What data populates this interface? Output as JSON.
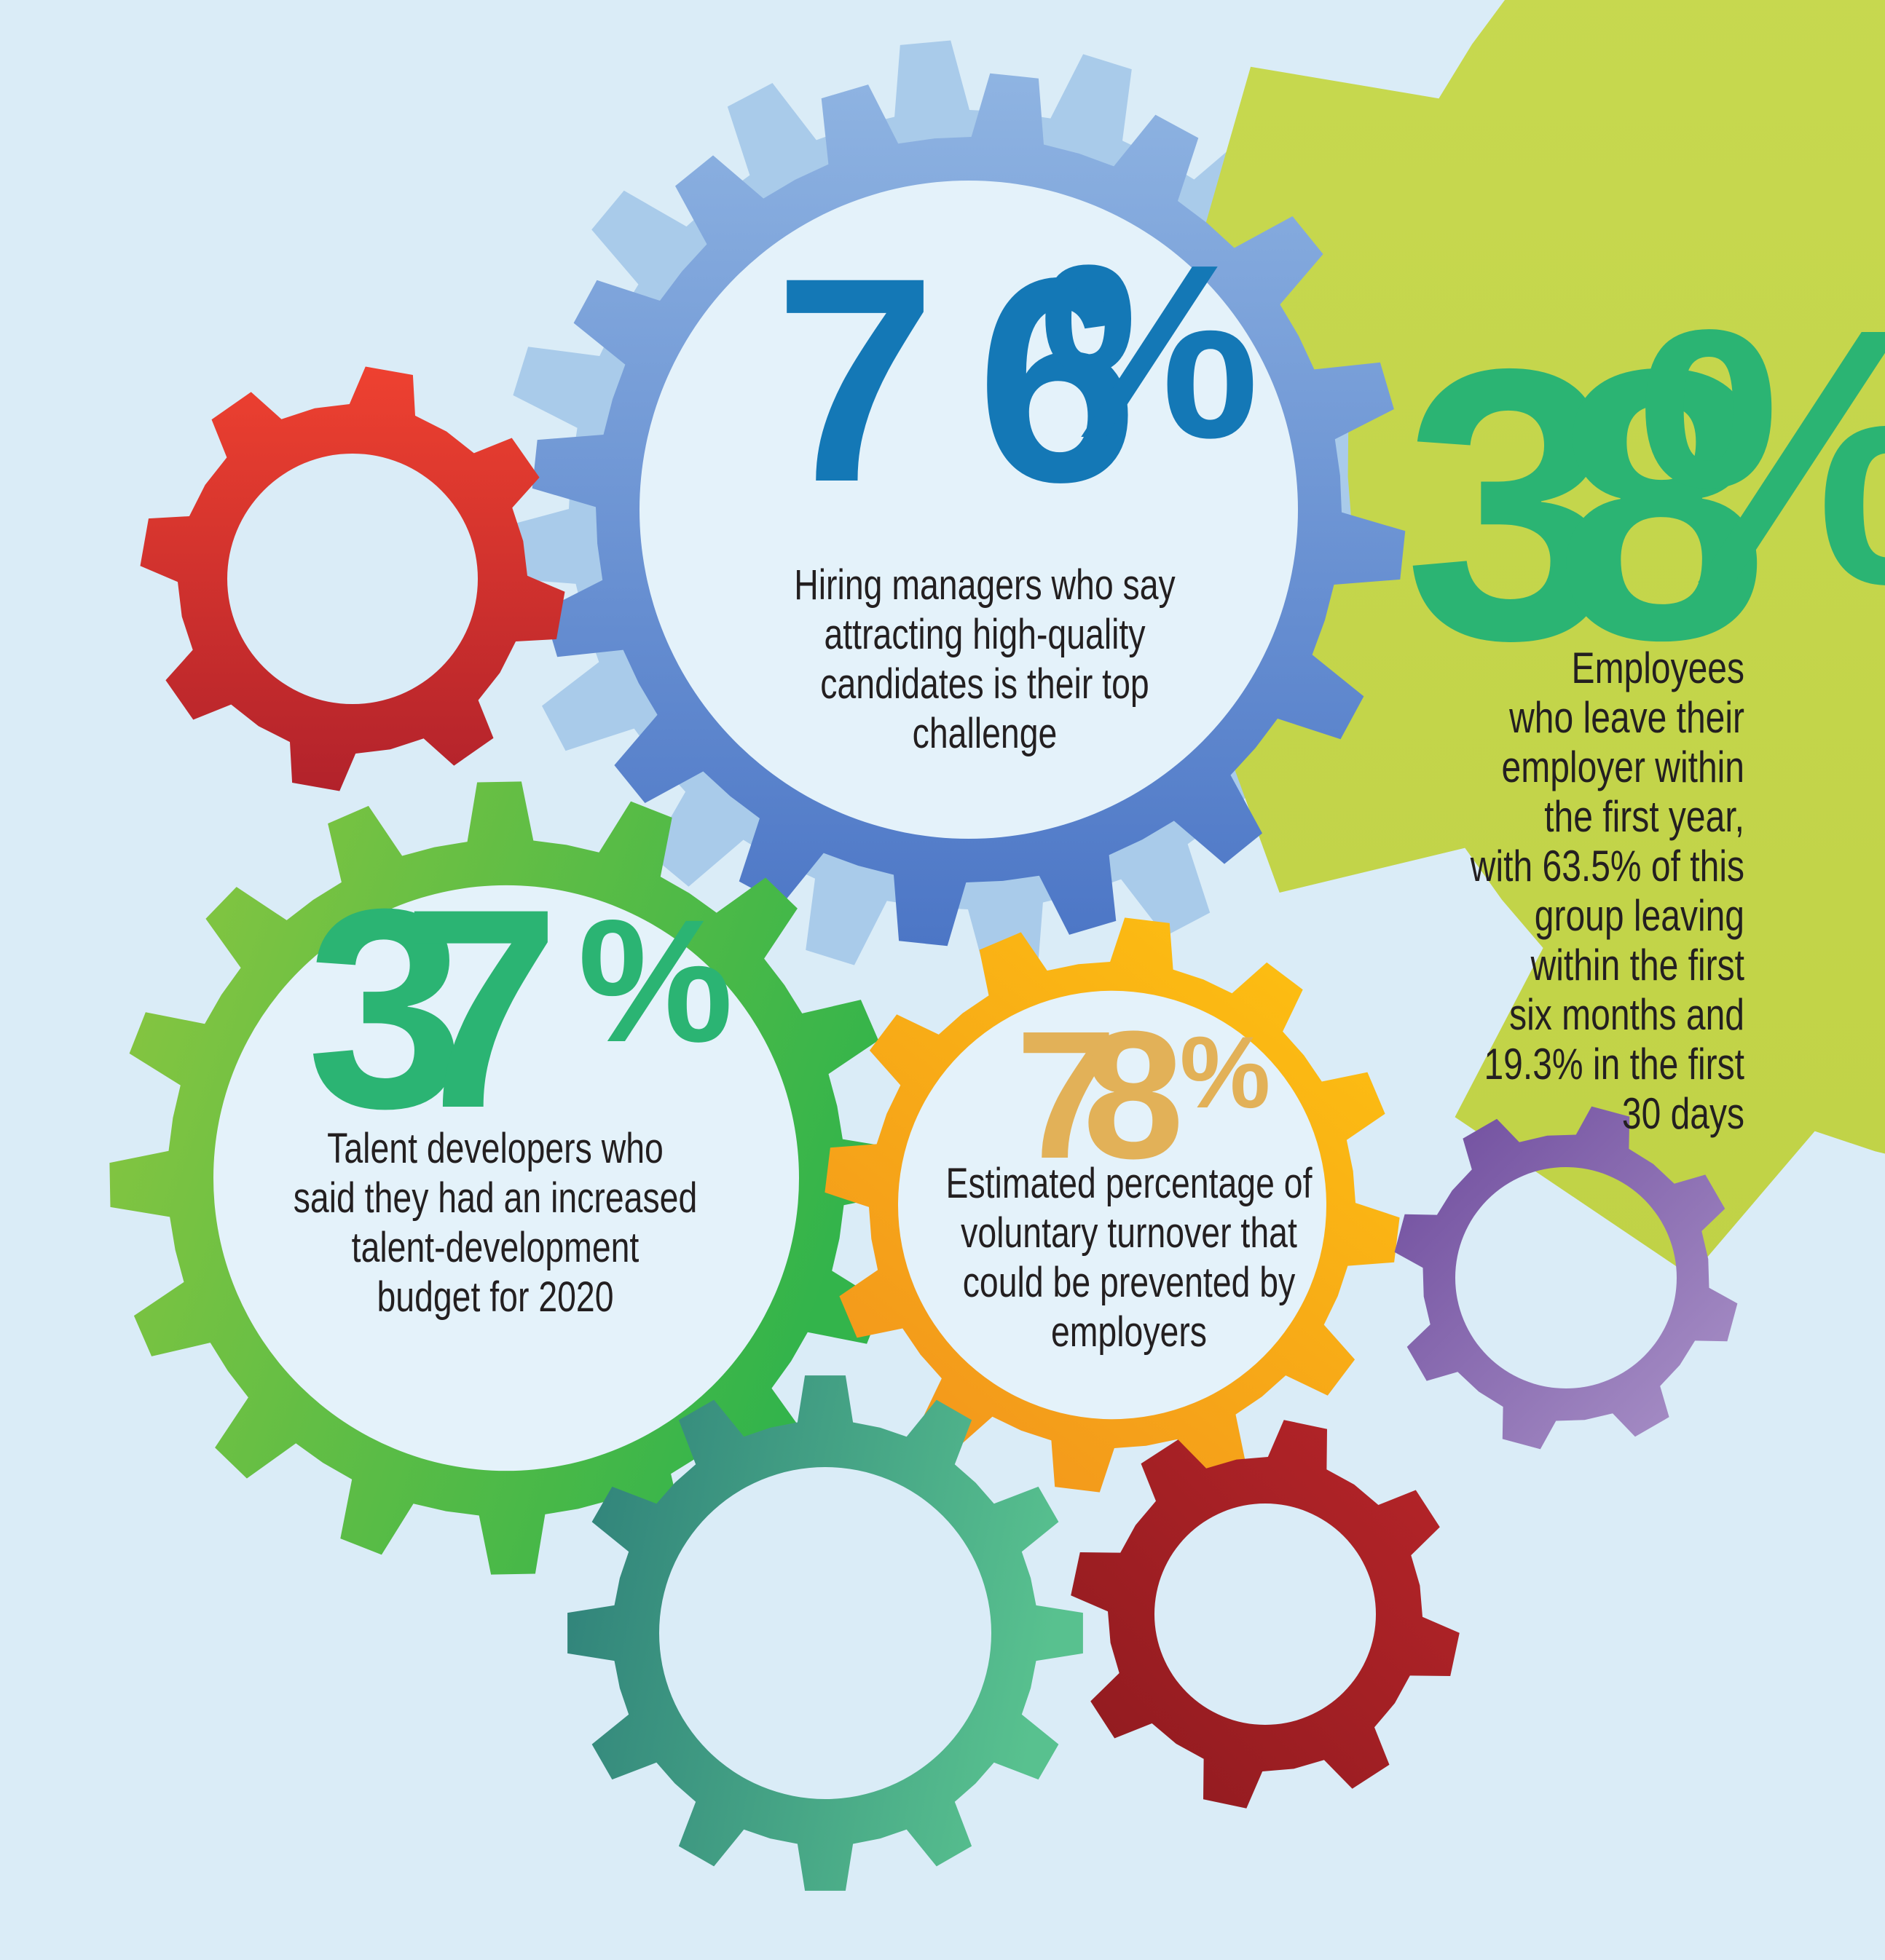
{
  "colors": {
    "background": "#daecf7",
    "inner_circle": "#e4f2fa",
    "caption_text": "#231f20",
    "gears": {
      "light_blue": "#a9cbea",
      "lime": "#c9da52",
      "lime_dark": "#c0d246",
      "blue_light": "#8fb4e2",
      "blue_dark": "#4c76c6",
      "red_light": "#ee4130",
      "red_dark": "#b2222b",
      "green_light": "#8ec73f",
      "green_dark": "#33b44b",
      "orange_light": "#fdc011",
      "orange_dark": "#f2941d",
      "purple_dark": "#6d4a9c",
      "purple_light": "#ab94c9",
      "teal_dark": "#2e7f79",
      "teal_light": "#58c18f",
      "dark_red_dark": "#8e1a1f",
      "dark_red_light": "#b72529"
    }
  },
  "stats": [
    {
      "id": "hiring",
      "value": "76",
      "unit": "%",
      "number_color": "#1478b6",
      "caption_lines": [
        "Hiring managers who say",
        "attracting high-quality",
        "candidates is their top",
        "challenge"
      ]
    },
    {
      "id": "employees",
      "value": "38",
      "unit": "%",
      "number_color": "#2bb473",
      "caption_lines": [
        "Employees",
        "who leave their",
        "employer within",
        "the first year,",
        "with 63.5% of this",
        "group leaving",
        "within the first",
        "six months and",
        "19.3% in the first",
        "30 days"
      ]
    },
    {
      "id": "talent",
      "value": "37",
      "unit": "%",
      "number_color": "#2bb473",
      "caption_lines": [
        "Talent developers who",
        "said they had an increased",
        "talent-development",
        "budget for 2020"
      ]
    },
    {
      "id": "turnover",
      "value": "78",
      "unit": "%",
      "number_color": "#e2b158",
      "caption_lines": [
        "Estimated percentage of",
        "voluntary turnover that",
        "could be prevented by",
        "employers"
      ]
    }
  ]
}
